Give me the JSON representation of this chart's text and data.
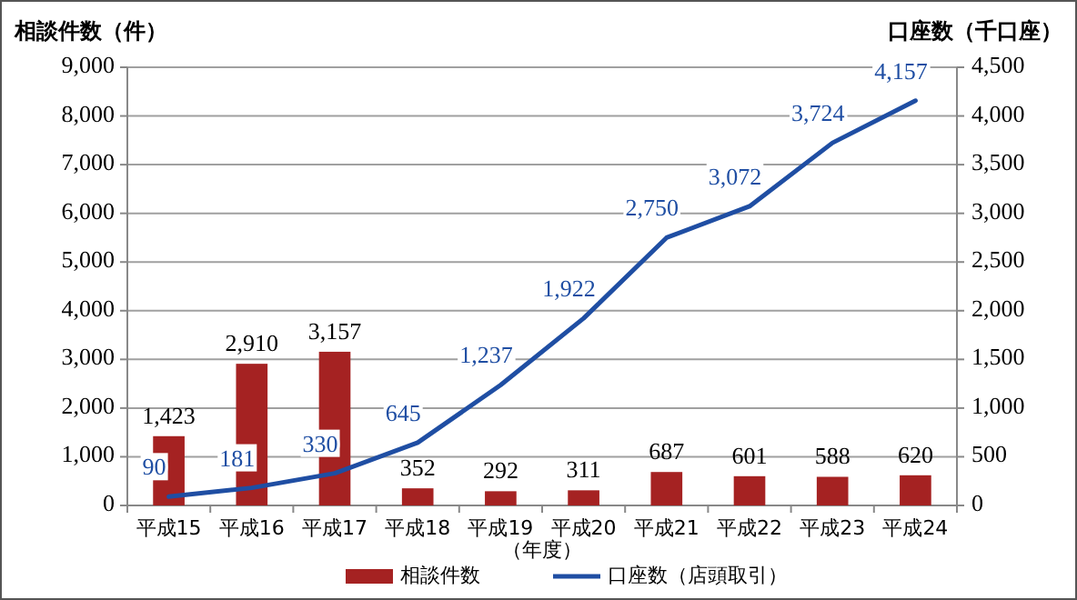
{
  "chart_data": {
    "type": "bar",
    "categories": [
      "平成15",
      "平成16",
      "平成17",
      "平成18",
      "平成19",
      "平成20",
      "平成21",
      "平成22",
      "平成23",
      "平成24"
    ],
    "xlabel": "（年度）",
    "ylabel": "相談件数（件）",
    "y2label": "口座数（千口座）",
    "series": [
      {
        "name": "相談件数",
        "color": "#a52222",
        "values": [
          1423,
          2910,
          3157,
          352,
          292,
          311,
          687,
          601,
          588,
          620
        ],
        "value_labels": [
          "1,423",
          "2,910",
          "3,157",
          "352",
          "292",
          "311",
          "687",
          "601",
          "588",
          "620"
        ]
      },
      {
        "name": "口座数（店頭取引）",
        "type": "line",
        "axis": "y2",
        "color": "#1f4ea3",
        "values": [
          90,
          181,
          330,
          645,
          1237,
          1922,
          2750,
          3072,
          3724,
          4157
        ],
        "value_labels": [
          "90",
          "181",
          "330",
          "645",
          "1,237",
          "1,922",
          "2,750",
          "3,072",
          "3,724",
          "4,157"
        ]
      }
    ],
    "ylim": [
      0,
      9000
    ],
    "yticks": [
      0,
      {
        "value": 1000,
        "label": "1,000"
      },
      {
        "value": 2000,
        "label": "2,000"
      },
      {
        "value": 3000,
        "label": "3,000"
      },
      {
        "value": 4000,
        "label": "4,000"
      },
      {
        "value": 5000,
        "label": "5,000"
      },
      {
        "value": 6000,
        "label": "6,000"
      },
      {
        "value": 7000,
        "label": "7,000"
      },
      {
        "value": 8000,
        "label": "8,000"
      },
      {
        "value": 9000,
        "label": "9,000"
      }
    ],
    "y2lim": [
      0,
      4500
    ],
    "y2ticks": [
      0,
      500,
      {
        "value": 1000,
        "label": "1,000"
      },
      {
        "value": 1500,
        "label": "1,500"
      },
      {
        "value": 2000,
        "label": "2,000"
      },
      {
        "value": 2500,
        "label": "2,500"
      },
      {
        "value": 3000,
        "label": "3,000"
      },
      {
        "value": 3500,
        "label": "3,500"
      },
      {
        "value": 4000,
        "label": "4,000"
      },
      {
        "value": 4500,
        "label": "4,500"
      }
    ],
    "grid": "y",
    "legend": "bottom"
  }
}
